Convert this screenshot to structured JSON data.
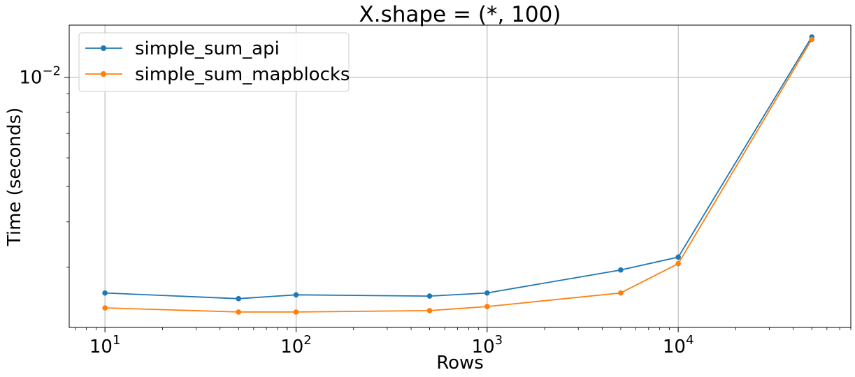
{
  "chart_data": {
    "type": "line",
    "title": "X.shape = (*, 100)",
    "xlabel": "Rows",
    "ylabel": "Time (seconds)",
    "xscale": "log",
    "yscale": "log",
    "xlim": [
      6.5,
      80000
    ],
    "ylim": [
      0.00205,
      0.0139
    ],
    "grid": true,
    "legend_position": "upper-left",
    "x_major_ticks": [
      {
        "value": 10,
        "base": "10",
        "exp": "1"
      },
      {
        "value": 100,
        "base": "10",
        "exp": "2"
      },
      {
        "value": 1000,
        "base": "10",
        "exp": "3"
      },
      {
        "value": 10000,
        "base": "10",
        "exp": "4"
      }
    ],
    "y_major_ticks": [
      {
        "value": 0.01,
        "base": "10",
        "exp": "−2"
      }
    ],
    "series": [
      {
        "name": "simple_sum_api",
        "color": "#1f77b4",
        "x": [
          10,
          50,
          100,
          500,
          1000,
          5000,
          10000,
          50000
        ],
        "y": [
          0.00255,
          0.00246,
          0.00252,
          0.0025,
          0.00255,
          0.00295,
          0.0032,
          0.0129
        ]
      },
      {
        "name": "simple_sum_mapblocks",
        "color": "#ff7f0e",
        "x": [
          10,
          50,
          100,
          500,
          1000,
          5000,
          10000,
          50000
        ],
        "y": [
          0.00232,
          0.00226,
          0.00226,
          0.00228,
          0.00234,
          0.00255,
          0.00307,
          0.0127
        ]
      }
    ]
  }
}
